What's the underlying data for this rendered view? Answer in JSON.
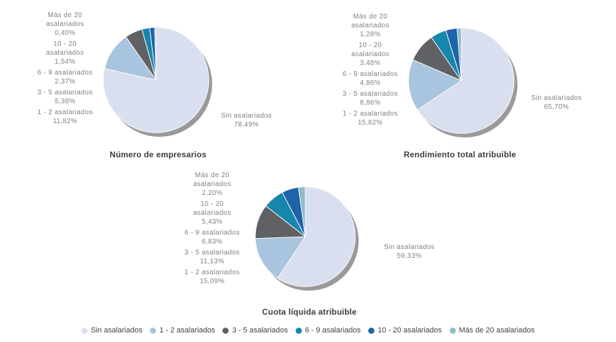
{
  "colors": {
    "label_text": "#7f7f7f",
    "title_text": "#3c3c3c",
    "legend_text": "#404040",
    "slice_border": "#fafafa",
    "shadow": "#9a9a9a"
  },
  "series_colors": {
    "Sin asalariados": "#dadff0",
    "1 - 2 asalariados": "#a8c4de",
    "3 - 5 asalariados": "#5f6164",
    "6 - 9 asalariados": "#1786ac",
    "10 - 20 asalariados": "#1f63a8",
    "Más de 20 asalariados": "#8fbccc"
  },
  "chart_data": [
    {
      "type": "pie",
      "title": "Número de empresarios",
      "slices": [
        {
          "label": "Sin asalariados",
          "label_lines": "Sin asalariados",
          "pct": 78.49,
          "pct_label": "78,49%"
        },
        {
          "label": "1 - 2 asalariados",
          "label_lines": "1 - 2 asalariados",
          "pct": 11.82,
          "pct_label": "11,82%"
        },
        {
          "label": "3 - 5 asalariados",
          "label_lines": "3 - 5 asalariados",
          "pct": 5.38,
          "pct_label": "5,38%"
        },
        {
          "label": "6 - 9 asalariados",
          "label_lines": "6 - 9 asalariados",
          "pct": 2.37,
          "pct_label": "2,37%"
        },
        {
          "label": "10 - 20 asalariados",
          "label_lines": "10 - 20\nasalariados",
          "pct": 1.54,
          "pct_label": "1,54%"
        },
        {
          "label": "Más de 20 asalariados",
          "label_lines": "Más de 20\nasalariados",
          "pct": 0.4,
          "pct_label": "0,40%"
        }
      ]
    },
    {
      "type": "pie",
      "title": "Rendimiento total atribuible",
      "slices": [
        {
          "label": "Sin asalariados",
          "label_lines": "Sin asalariados",
          "pct": 65.7,
          "pct_label": "65,70%"
        },
        {
          "label": "1 - 2 asalariados",
          "label_lines": "1 - 2 asalariados",
          "pct": 15.82,
          "pct_label": "15,82%"
        },
        {
          "label": "3 - 5 asalariados",
          "label_lines": "3 - 5 asalariados",
          "pct": 8.86,
          "pct_label": "8,86%"
        },
        {
          "label": "6 - 9 asalariados",
          "label_lines": "6 - 9 asalariados",
          "pct": 4.86,
          "pct_label": "4,86%"
        },
        {
          "label": "10 - 20 asalariados",
          "label_lines": "10 - 20\nasalariados",
          "pct": 3.48,
          "pct_label": "3,48%"
        },
        {
          "label": "Más de 20 asalariados",
          "label_lines": "Más de 20\nasalariados",
          "pct": 1.28,
          "pct_label": "1,28%"
        }
      ]
    },
    {
      "type": "pie",
      "title": "Cuota líquida atribuible",
      "slices": [
        {
          "label": "Sin asalariados",
          "label_lines": "Sin asalariados",
          "pct": 59.33,
          "pct_label": "59,33%"
        },
        {
          "label": "1 - 2 asalariados",
          "label_lines": "1 - 2 asalariados",
          "pct": 15.09,
          "pct_label": "15,09%"
        },
        {
          "label": "3 - 5 asalariados",
          "label_lines": "3 - 5 asalariados",
          "pct": 11.13,
          "pct_label": "11,13%"
        },
        {
          "label": "6 - 9 asalariados",
          "label_lines": "6 - 9 asalariados",
          "pct": 6.83,
          "pct_label": "6,83%"
        },
        {
          "label": "10 - 20 asalariados",
          "label_lines": "10 - 20\nasalariados",
          "pct": 5.43,
          "pct_label": "5,43%"
        },
        {
          "label": "Más de 20 asalariados",
          "label_lines": "Más de 20\nasalariados",
          "pct": 2.2,
          "pct_label": "2,20%"
        }
      ]
    }
  ],
  "legend": {
    "items": [
      "Sin asalariados",
      "1 - 2 asalariados",
      "3 - 5 asalariados",
      "6 - 9 asalariados",
      "10 - 20 asalariados",
      "Más de 20 asalariados"
    ]
  }
}
